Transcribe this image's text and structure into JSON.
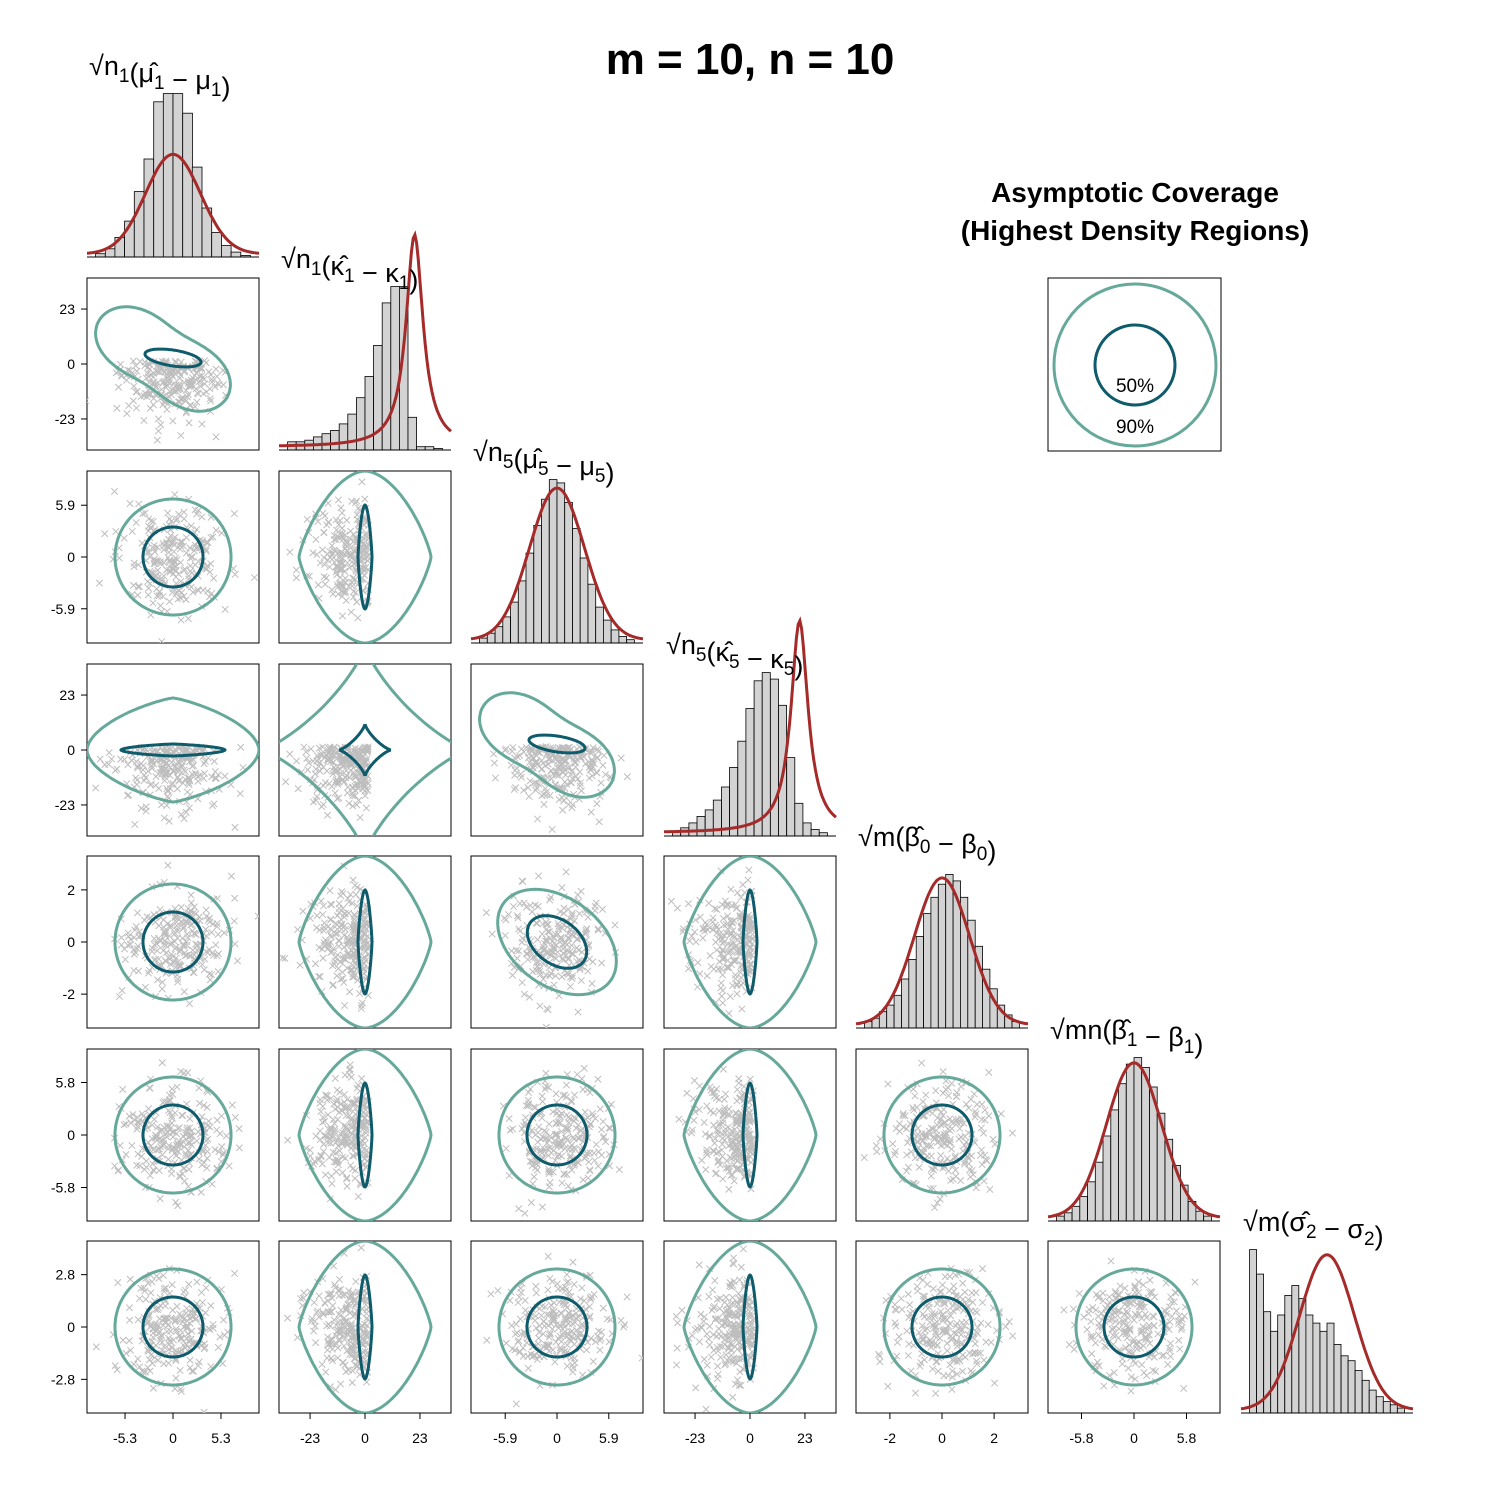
{
  "chart_data": {
    "type": "pairs",
    "title": "m = 10, n = 10",
    "colors": {
      "histogram_fill": "#d3d3d3",
      "density_curve": "#a52a2a",
      "contour_50": "#0e5b6b",
      "contour_90": "#66a99b",
      "points": "#bdbdbd"
    },
    "legend": {
      "title_line1": "Asymptotic Coverage",
      "title_line2": "(Highest Density Regions)",
      "labels": [
        "50%",
        "90%"
      ]
    },
    "variables": [
      {
        "id": "mu1",
        "label_parts": {
          "root": "n",
          "root_sub": "1",
          "hat": "μ",
          "hat_sub": "1",
          "minus": "μ",
          "minus_sub": "1"
        },
        "ticks": [
          -5.3,
          0,
          5.3
        ],
        "tick_labels": [
          "-5.3",
          "0",
          "5.3"
        ],
        "range": [
          -9.5,
          9.5
        ],
        "contour_shape": "ellipse",
        "hist": [
          0.02,
          0.05,
          0.12,
          0.22,
          0.4,
          0.6,
          0.95,
          1.0,
          1.0,
          0.88,
          0.55,
          0.3,
          0.15,
          0.07,
          0.03,
          0.01
        ],
        "hist_range": [
          -3.8,
          4.2
        ],
        "density_peak": 0.61
      },
      {
        "id": "kappa1",
        "label_parts": {
          "root": "n",
          "root_sub": "1",
          "hat": "κ",
          "hat_sub": "1",
          "minus": "κ",
          "minus_sub": "1"
        },
        "ticks": [
          -23,
          0,
          23
        ],
        "tick_labels": [
          "-23",
          "0",
          "23"
        ],
        "range": [
          -36,
          36
        ],
        "contour_shape": "diamond",
        "hist": [
          0.05,
          0.05,
          0.06,
          0.08,
          0.1,
          0.12,
          0.16,
          0.22,
          0.32,
          0.45,
          0.64,
          0.9,
          1.0,
          1.0,
          0.2,
          0.02,
          0.02,
          0.01
        ],
        "hist_range": [
          -35,
          7
        ],
        "density_peak": 1.3
      },
      {
        "id": "mu5",
        "label_parts": {
          "root": "n",
          "root_sub": "5",
          "hat": "μ",
          "hat_sub": "5",
          "minus": "μ",
          "minus_sub": "5"
        },
        "ticks": [
          -5.9,
          0,
          5.9
        ],
        "tick_labels": [
          "-5.9",
          "0",
          "5.9"
        ],
        "range": [
          -9.8,
          9.8
        ],
        "contour_shape": "ellipse",
        "hist": [
          0.03,
          0.06,
          0.1,
          0.16,
          0.25,
          0.38,
          0.55,
          0.72,
          0.88,
          1.0,
          0.98,
          0.86,
          0.7,
          0.52,
          0.36,
          0.22,
          0.14,
          0.08,
          0.04,
          0.02
        ],
        "hist_range": [
          -9.2,
          9.2
        ],
        "density_peak": 0.93
      },
      {
        "id": "kappa5",
        "label_parts": {
          "root": "n",
          "root_sub": "5",
          "hat": "κ",
          "hat_sub": "5",
          "minus": "κ",
          "minus_sub": "5"
        },
        "ticks": [
          -23,
          0,
          23
        ],
        "tick_labels": [
          "-23",
          "0",
          "23"
        ],
        "range": [
          -36,
          36
        ],
        "contour_shape": "diamond",
        "hist": [
          0.03,
          0.05,
          0.08,
          0.12,
          0.16,
          0.22,
          0.3,
          0.42,
          0.58,
          0.78,
          0.95,
          1.0,
          0.96,
          0.8,
          0.48,
          0.2,
          0.08,
          0.04,
          0.02
        ],
        "hist_range": [
          -36,
          14
        ],
        "density_peak": 1.3
      },
      {
        "id": "beta0",
        "label_parts": {
          "root": "m",
          "root_sub": "",
          "hat": "β",
          "hat_sub": "0",
          "minus": "β",
          "minus_sub": "0"
        },
        "ticks": [
          -2,
          0,
          2
        ],
        "tick_labels": [
          "-2",
          "0",
          "2"
        ],
        "range": [
          -3.3,
          3.3
        ],
        "contour_shape": "ellipse",
        "hist": [
          0.04,
          0.06,
          0.1,
          0.14,
          0.2,
          0.3,
          0.42,
          0.56,
          0.7,
          0.8,
          0.88,
          0.94,
          0.9,
          0.8,
          0.66,
          0.5,
          0.36,
          0.24,
          0.14,
          0.08,
          0.04
        ],
        "hist_range": [
          -3.2,
          3.2
        ],
        "density_peak": 0.9
      },
      {
        "id": "beta1",
        "label_parts": {
          "root": "mn",
          "root_sub": "",
          "hat": "β",
          "hat_sub": "1",
          "minus": "β",
          "minus_sub": "1"
        },
        "ticks": [
          -5.8,
          0,
          5.8
        ],
        "tick_labels": [
          "-5.8",
          "0",
          "5.8"
        ],
        "range": [
          -9.5,
          9.5
        ],
        "contour_shape": "ellipse",
        "hist": [
          0.03,
          0.05,
          0.09,
          0.15,
          0.24,
          0.36,
          0.52,
          0.68,
          0.84,
          0.96,
          1.0,
          0.94,
          0.82,
          0.66,
          0.5,
          0.34,
          0.22,
          0.12,
          0.06,
          0.03
        ],
        "hist_range": [
          -9.2,
          9.2
        ],
        "density_peak": 0.95
      },
      {
        "id": "sigma2",
        "label_parts": {
          "root": "m",
          "root_sub": "",
          "hat": "σ",
          "hat_sub": "2",
          "minus": "σ",
          "minus_sub": "2"
        },
        "ticks": [
          -2.8,
          0,
          2.8
        ],
        "tick_labels": [
          "-2.8",
          "0",
          "2.8"
        ],
        "range": [
          -4.6,
          4.6
        ],
        "contour_shape": "ellipse",
        "hist": [
          1.0,
          0.85,
          0.62,
          0.5,
          0.6,
          0.72,
          0.78,
          0.7,
          0.6,
          0.55,
          0.5,
          0.55,
          0.42,
          0.35,
          0.32,
          0.26,
          0.2,
          0.14,
          0.1,
          0.07,
          0.05,
          0.03
        ],
        "hist_range": [
          -2.8,
          4.4
        ],
        "density_peak": 0.95
      }
    ],
    "pairs": [
      {
        "row": 1,
        "col": 0,
        "contour": "bimodal-kappa-mu"
      },
      {
        "row": 3,
        "col": 2,
        "contour": "bimodal-kappa-mu"
      },
      {
        "row": 3,
        "col": 0,
        "contour": "lens-horizontal"
      },
      {
        "row": 3,
        "col": 1,
        "contour": "astroid"
      },
      {
        "row": 4,
        "col": 2,
        "contour": "tilted-ellipse"
      }
    ]
  }
}
